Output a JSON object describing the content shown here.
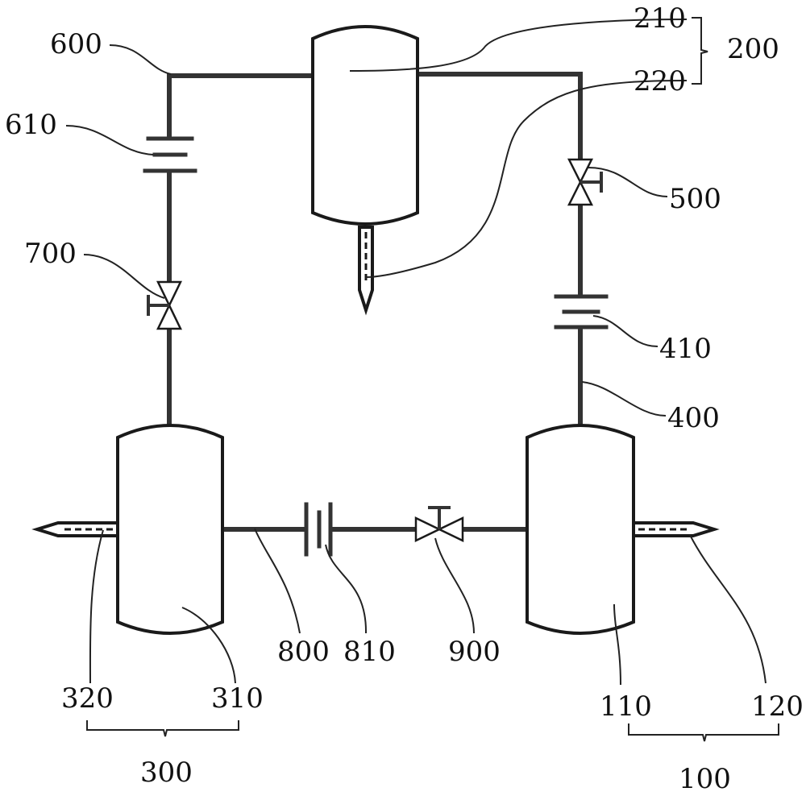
{
  "labels": {
    "l600": "600",
    "l610": "610",
    "l700": "700",
    "l210": "210",
    "l220": "220",
    "l200": "200",
    "l500": "500",
    "l410": "410",
    "l400": "400",
    "l320": "320",
    "l310": "310",
    "l300": "300",
    "l800": "800",
    "l810": "810",
    "l900": "900",
    "l110": "110",
    "l120": "120",
    "l100": "100"
  },
  "colors": {
    "line": "#333333",
    "background": "#ffffff"
  }
}
